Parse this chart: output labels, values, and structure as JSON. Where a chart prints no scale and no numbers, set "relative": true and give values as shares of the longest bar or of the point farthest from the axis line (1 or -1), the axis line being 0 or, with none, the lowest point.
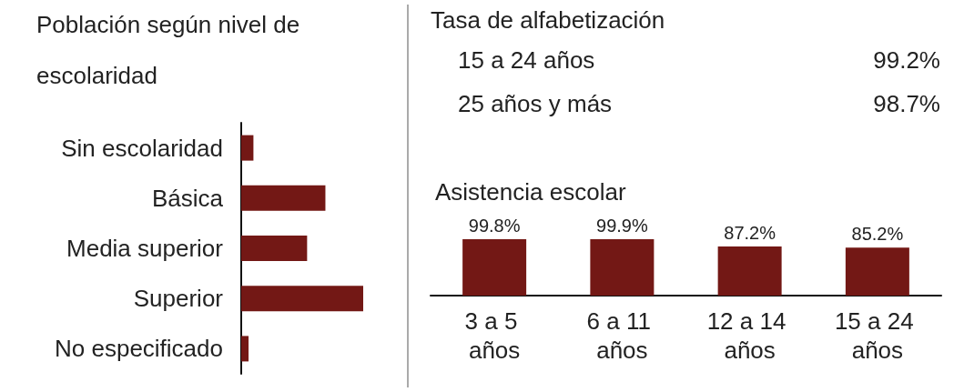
{
  "chart_data": [
    {
      "type": "bar",
      "title": "Población según nivel de escolaridad",
      "orientation": "horizontal",
      "relative": true,
      "categories": [
        "Sin escolaridad",
        "Básica",
        "Media superior",
        "Superior",
        "No especificado"
      ],
      "values": [
        0.1,
        0.69,
        0.54,
        1,
        0.06
      ],
      "color": "#731815"
    },
    {
      "type": "other",
      "title": "Tasa de alfabetización",
      "categories": [
        "15 a 24 años",
        "25 años y más"
      ],
      "value_labels": [
        "99.2%",
        "98.7%"
      ]
    },
    {
      "type": "bar",
      "title": "Asistencia escolar",
      "categories": [
        "3 a 5 años",
        "6 a 11 años",
        "12 a 14 años",
        "15 a 24 años"
      ],
      "values": [
        99.8,
        99.9,
        87.2,
        85.2
      ],
      "value_labels": [
        "99.8%",
        "99.9%",
        "87.2%",
        "85.2%"
      ],
      "color": "#731815",
      "tick_labels": "x"
    }
  ]
}
